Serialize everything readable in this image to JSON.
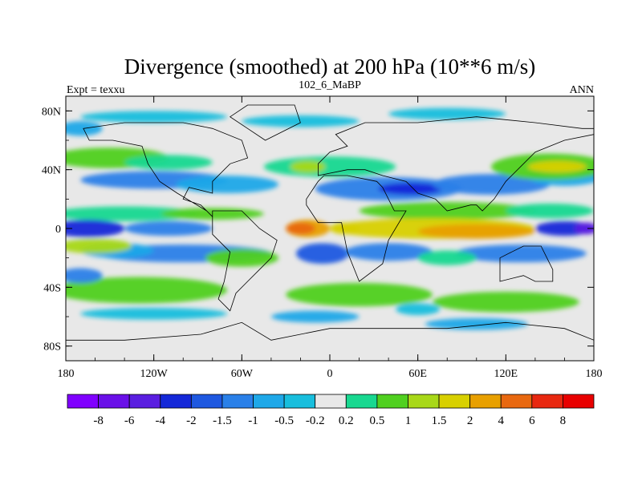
{
  "chart_data": {
    "type": "heatmap",
    "title": "Divergence (smoothed) at 200 hPa (10**6 m/s)",
    "left_label": "Expt = texxu",
    "center_label": "102_6_MaBP",
    "right_label": "ANN",
    "xlim": [
      -180,
      180
    ],
    "ylim": [
      -90,
      90
    ],
    "x_ticks": [
      {
        "value": -180,
        "label": "180"
      },
      {
        "value": -120,
        "label": "120W"
      },
      {
        "value": -60,
        "label": "60W"
      },
      {
        "value": 0,
        "label": "0"
      },
      {
        "value": 60,
        "label": "60E"
      },
      {
        "value": 120,
        "label": "120E"
      },
      {
        "value": 180,
        "label": "180"
      }
    ],
    "y_ticks": [
      {
        "value": 80,
        "label": "80N"
      },
      {
        "value": 40,
        "label": "40N"
      },
      {
        "value": 0,
        "label": "0"
      },
      {
        "value": -40,
        "label": "40S"
      },
      {
        "value": -80,
        "label": "80S"
      }
    ],
    "colorbar": {
      "levels": [
        "-8",
        "-6",
        "-4",
        "-2",
        "-1.5",
        "-1",
        "-0.5",
        "-0.2",
        "0.2",
        "0.5",
        "1",
        "1.5",
        "2",
        "4",
        "6",
        "8"
      ],
      "colors": [
        "#8000ff",
        "#6a10e8",
        "#5a1ee0",
        "#1428d8",
        "#1e58e0",
        "#2a80e8",
        "#1ea8e8",
        "#18bedd",
        "#e8e8e8",
        "#18d890",
        "#50d020",
        "#a8d818",
        "#d8d000",
        "#e8a000",
        "#e86810",
        "#e82810",
        "#e80000"
      ]
    },
    "field_description": "Divergent/convergent bands: equatorial divergence maximum over Indian Ocean/Indonesia (2 to 4), convergence over eastern Pacific equator (-2 to -4), subtropical convergence belts near 30N and 30S, mid-latitude positive bands near 40N and 50S."
  }
}
